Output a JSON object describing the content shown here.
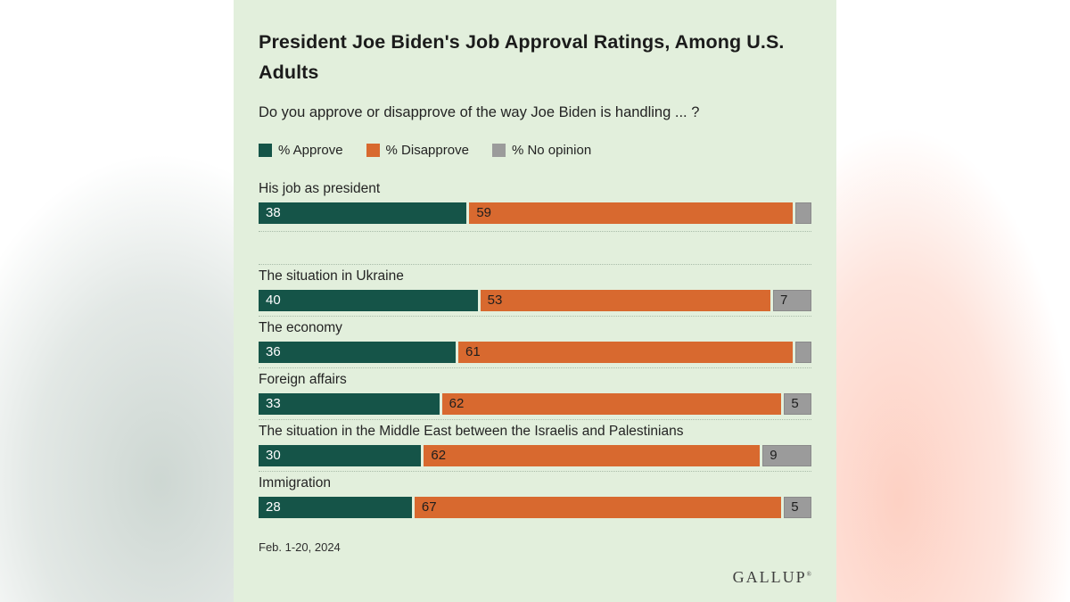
{
  "card": {
    "background": "#e2efdc",
    "title": "President Joe Biden's Job Approval Ratings, Among U.S. Adults",
    "subtitle": "Do you approve or disapprove of the way Joe Biden is handling ... ?"
  },
  "legend": {
    "items": [
      {
        "label": "% Approve",
        "color": "#155448"
      },
      {
        "label": "% Disapprove",
        "color": "#d8692f"
      },
      {
        "label": "% No opinion",
        "color": "#9b9b9b"
      }
    ]
  },
  "chart_data": {
    "type": "bar",
    "variant": "horizontal-stacked",
    "xlim": [
      0,
      100
    ],
    "grid": false,
    "legend_position": "top",
    "group_break_after": 0,
    "categories": [
      "His job as president",
      "The situation in Ukraine",
      "The economy",
      "Foreign affairs",
      "The situation in the Middle East between the Israelis and Palestinians",
      "Immigration"
    ],
    "series": [
      {
        "name": "% Approve",
        "key": "approve",
        "color": "#155448",
        "label_color": "#ffffff",
        "values": [
          38,
          40,
          36,
          33,
          30,
          28
        ],
        "show_labels": [
          true,
          true,
          true,
          true,
          true,
          true
        ]
      },
      {
        "name": "% Disapprove",
        "key": "disapprove",
        "color": "#d8692f",
        "label_color": "#1e1e1e",
        "values": [
          59,
          53,
          61,
          62,
          62,
          67
        ],
        "show_labels": [
          true,
          true,
          true,
          true,
          true,
          true
        ]
      },
      {
        "name": "% No opinion",
        "key": "no-opinion",
        "color": "#9b9b9b",
        "border": "#8a8a8a",
        "label_color": "#1e1e1e",
        "values": [
          3,
          7,
          3,
          5,
          9,
          5
        ],
        "show_labels": [
          false,
          true,
          false,
          true,
          true,
          true
        ]
      }
    ]
  },
  "footer": {
    "date": "Feb. 1-20, 2024",
    "brand": "GALLUP",
    "brand_mark": "®"
  }
}
